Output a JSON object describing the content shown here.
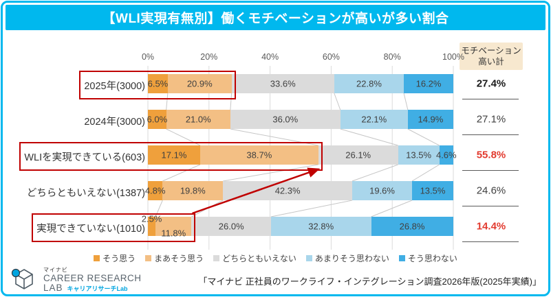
{
  "title": "【WLI実現有無別】働くモチベーションが高いが多い割合",
  "colors": {
    "accent_cyan": "#00B8EE",
    "highlight_red": "#C00000",
    "summary_red": "#E23A2E",
    "summary_header_bg": "#F7E8CF",
    "gridline": "#DADADA",
    "connector": "#C6C6C6"
  },
  "chart_data": {
    "type": "bar",
    "orientation": "horizontal",
    "stacked": true,
    "xlim": [
      0,
      100
    ],
    "x_ticks": [
      "0%",
      "20%",
      "40%",
      "60%",
      "80%",
      "100%"
    ],
    "grid": true,
    "legend_position": "bottom",
    "series": [
      {
        "name": "そう思う",
        "color": "#EFA03C"
      },
      {
        "name": "まあそう思う",
        "color": "#F3BF84"
      },
      {
        "name": "どちらともいえない",
        "color": "#DBDBDB"
      },
      {
        "name": "あまりそう思わない",
        "color": "#A9D6EB"
      },
      {
        "name": "そう思わない",
        "color": "#40AEE4"
      }
    ],
    "rows": [
      {
        "label": "2025年(3000)",
        "values": [
          6.5,
          20.9,
          33.6,
          22.8,
          16.2
        ],
        "highlighted": true
      },
      {
        "label": "2024年(3000)",
        "values": [
          6.0,
          21.0,
          36.0,
          22.1,
          14.9
        ],
        "highlighted": false
      },
      {
        "label": "WLIを実現できている(603)",
        "values": [
          17.1,
          38.7,
          26.1,
          13.5,
          4.6
        ],
        "highlighted": true
      },
      {
        "label": "どちらともいえない(1387)",
        "values": [
          4.8,
          19.8,
          42.3,
          19.6,
          13.5
        ],
        "highlighted": false
      },
      {
        "label": "実現できていない(1010)",
        "values": [
          2.5,
          11.8,
          26.0,
          32.8,
          26.8
        ],
        "highlighted": true
      }
    ],
    "annotations": {
      "highlighted_rows": [
        0,
        2,
        4
      ],
      "highlight_color": "#C00000",
      "arrow": {
        "from_row": 4,
        "to_row": 2,
        "color": "#C00000"
      }
    }
  },
  "summary_column": {
    "header": "モチベーション高い計",
    "values": [
      {
        "text": "27.4%",
        "style": "bold"
      },
      {
        "text": "27.1%",
        "style": "normal"
      },
      {
        "text": "55.8%",
        "style": "red"
      },
      {
        "text": "24.6%",
        "style": "normal"
      },
      {
        "text": "14.4%",
        "style": "red"
      }
    ]
  },
  "footer": {
    "logo": {
      "brand_small": "マイナビ",
      "line1": "CAREER RESEARCH",
      "line2": "LAB",
      "line2_sub": "キャリアリサーチLab"
    },
    "source": "「マイナビ 正社員のワークライフ・インテグレーション調査2026年版(2025年実績)」"
  }
}
